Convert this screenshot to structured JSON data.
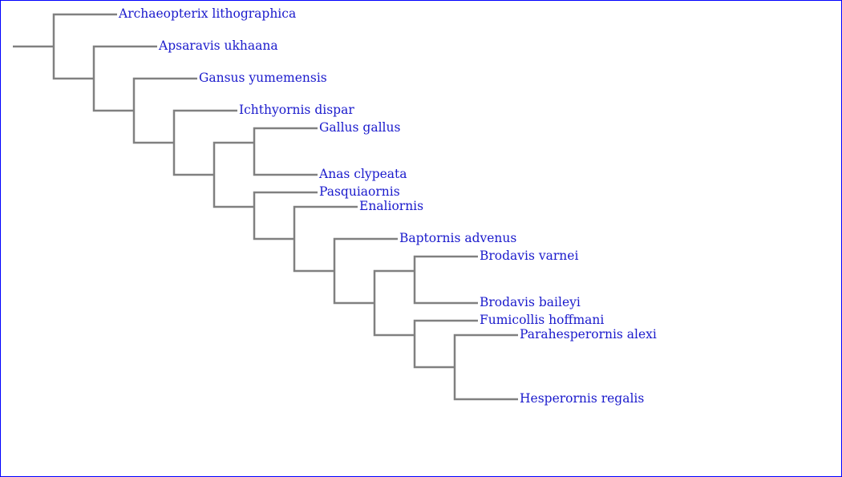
{
  "colors": {
    "border": "#0000ff",
    "branch": "#808080",
    "label": "#1a1acc",
    "background": "#ffffff"
  },
  "tree": {
    "taxa": {
      "archaeopterix": "Archaeopterix lithographica",
      "apsaravis": "Apsaravis ukhaana",
      "gansus": "Gansus yumemensis",
      "ichthyornis": "Ichthyornis dispar",
      "gallus": "Gallus gallus",
      "anas": "Anas clypeata",
      "pasquiaornis": "Pasquiaornis",
      "enaliornis": "Enaliornis",
      "baptornis": "Baptornis advenus",
      "brodavis_varnei": "Brodavis varnei",
      "brodavis_baileyi": "Brodavis baileyi",
      "fumicollis": "Fumicollis hoffmani",
      "parahesperornis": "Parahesperornis alexi",
      "hesperornis": "Hesperornis regalis"
    },
    "newick": "(Archaeopterix lithographica,(Apsaravis ukhaana,(Gansus yumemensis,(Ichthyornis dispar,((Gallus gallus,Anas clypeata),(Pasquiaornis,(Enaliornis,(Baptornis advenus,((Brodavis varnei,Brodavis baileyi),(Fumicollis hoffmani,(Parahesperornis alexi,Hesperornis regalis)))))))))))"
  }
}
